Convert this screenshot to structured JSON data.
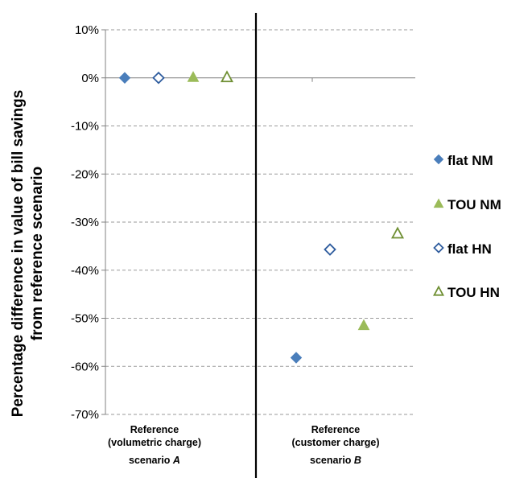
{
  "chart_data": {
    "type": "scatter",
    "ylabel_lines": [
      "Percentage difference in value of bill savings",
      "from reference scenario"
    ],
    "ylim": [
      -0.7,
      0.1
    ],
    "yticks": [
      0.1,
      0,
      -0.1,
      -0.2,
      -0.3,
      -0.4,
      -0.5,
      -0.6,
      -0.7
    ],
    "ytick_labels": [
      "10%",
      "0%",
      "-10%",
      "-20%",
      "-30%",
      "-40%",
      "-50%",
      "-60%",
      "-70%"
    ],
    "grid": true,
    "legend_position": "right",
    "groups": [
      {
        "lines": [
          "Reference",
          "(volumetric charge)"
        ],
        "scenario_prefix": "scenario ",
        "scenario_letter": "A"
      },
      {
        "lines": [
          "Reference",
          "(customer charge)"
        ],
        "scenario_prefix": "scenario ",
        "scenario_letter": "B"
      }
    ],
    "series": [
      {
        "name": "flat NM",
        "marker": "diamond",
        "filled": true,
        "color": "#4a7ebb",
        "values": [
          0,
          -0.582
        ]
      },
      {
        "name": "flat HN",
        "marker": "diamond",
        "filled": false,
        "color": "#2e5c9e",
        "values": [
          0,
          -0.357
        ]
      },
      {
        "name": "TOU NM",
        "marker": "triangle",
        "filled": true,
        "color": "#9bbb59",
        "values": [
          0,
          -0.516
        ]
      },
      {
        "name": "TOU HN",
        "marker": "triangle",
        "filled": false,
        "color": "#6f8f33",
        "values": [
          0,
          -0.325
        ]
      }
    ],
    "legend_order": [
      "flat NM",
      "TOU NM",
      "flat HN",
      "TOU HN"
    ]
  }
}
